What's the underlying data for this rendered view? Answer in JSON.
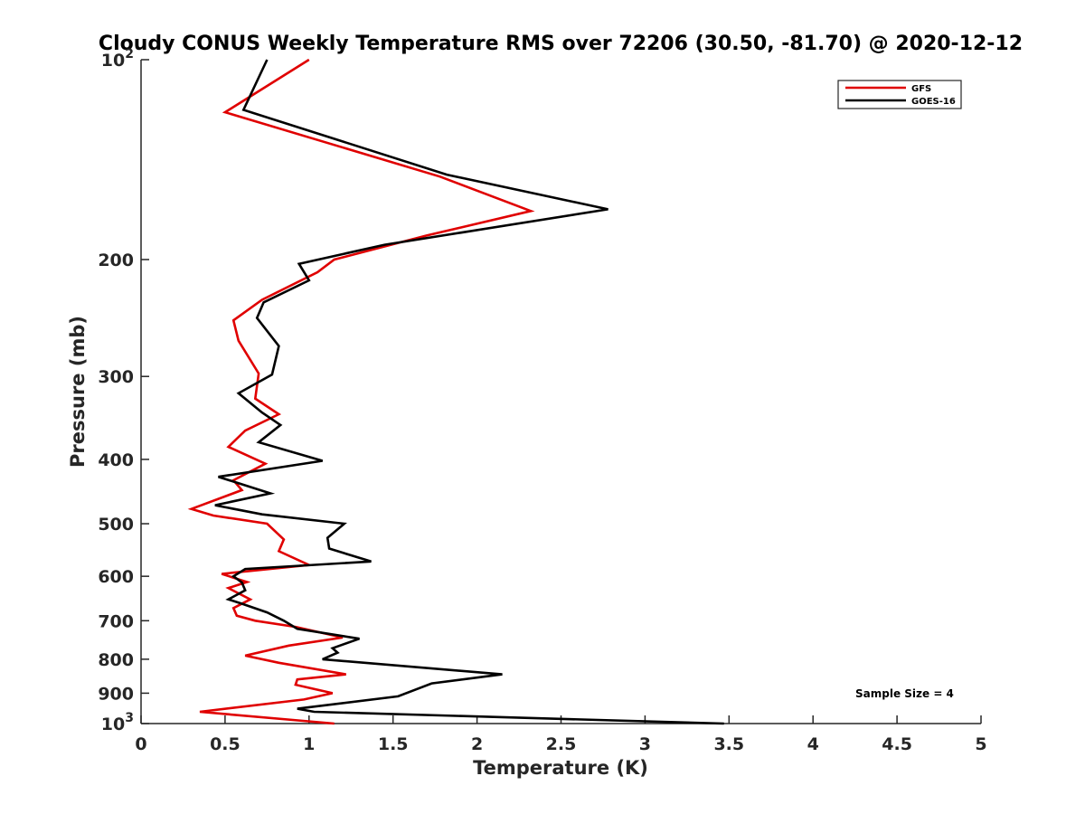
{
  "chart_data": {
    "type": "line",
    "title": "Cloudy CONUS Weekly Temperature RMS over 72206 (30.50, -81.70) @ 2020-12-12",
    "xlabel": "Temperature (K)",
    "ylabel": "Pressure (mb)",
    "xlim": [
      0,
      5
    ],
    "ylim": [
      100,
      1000
    ],
    "y_scale": "log",
    "y_reversed": true,
    "grid": false,
    "legend_position": "top-right",
    "x_ticks": [
      {
        "value": 0,
        "label": "0"
      },
      {
        "value": 0.5,
        "label": "0.5"
      },
      {
        "value": 1,
        "label": "1"
      },
      {
        "value": 1.5,
        "label": "1.5"
      },
      {
        "value": 2,
        "label": "2"
      },
      {
        "value": 2.5,
        "label": "2.5"
      },
      {
        "value": 3,
        "label": "3"
      },
      {
        "value": 3.5,
        "label": "3.5"
      },
      {
        "value": 4,
        "label": "4"
      },
      {
        "value": 4.5,
        "label": "4.5"
      },
      {
        "value": 5,
        "label": "5"
      }
    ],
    "y_ticks": [
      {
        "value": 100,
        "base": "10",
        "exp": "2"
      },
      {
        "value": 200,
        "base": "200",
        "exp": ""
      },
      {
        "value": 300,
        "base": "300",
        "exp": ""
      },
      {
        "value": 400,
        "base": "400",
        "exp": ""
      },
      {
        "value": 500,
        "base": "500",
        "exp": ""
      },
      {
        "value": 600,
        "base": "600",
        "exp": ""
      },
      {
        "value": 700,
        "base": "700",
        "exp": ""
      },
      {
        "value": 800,
        "base": "800",
        "exp": ""
      },
      {
        "value": 900,
        "base": "900",
        "exp": ""
      },
      {
        "value": 1000,
        "base": "10",
        "exp": "3"
      }
    ],
    "annotation": "Sample Size = 4",
    "series": [
      {
        "name": "GFS",
        "color": "#e00000",
        "points": [
          [
            1.0,
            100
          ],
          [
            0.5,
            120
          ],
          [
            1.78,
            150
          ],
          [
            2.32,
            169
          ],
          [
            1.7,
            184
          ],
          [
            1.15,
            200
          ],
          [
            1.05,
            209
          ],
          [
            0.72,
            230
          ],
          [
            0.55,
            247
          ],
          [
            0.58,
            265
          ],
          [
            0.7,
            297
          ],
          [
            0.68,
            324
          ],
          [
            0.82,
            342
          ],
          [
            0.62,
            362
          ],
          [
            0.52,
            383
          ],
          [
            0.74,
            406
          ],
          [
            0.55,
            430
          ],
          [
            0.6,
            445
          ],
          [
            0.3,
            475
          ],
          [
            0.43,
            486
          ],
          [
            0.75,
            500
          ],
          [
            0.85,
            528
          ],
          [
            0.82,
            550
          ],
          [
            1.0,
            577
          ],
          [
            0.48,
            595
          ],
          [
            0.63,
            612
          ],
          [
            0.52,
            625
          ],
          [
            0.65,
            650
          ],
          [
            0.55,
            670
          ],
          [
            0.57,
            688
          ],
          [
            0.68,
            700
          ],
          [
            0.92,
            715
          ],
          [
            1.2,
            742
          ],
          [
            0.88,
            763
          ],
          [
            0.62,
            790
          ],
          [
            0.82,
            810
          ],
          [
            1.22,
            843
          ],
          [
            0.93,
            858
          ],
          [
            0.92,
            874
          ],
          [
            1.14,
            900
          ],
          [
            0.97,
            920
          ],
          [
            0.35,
            960
          ],
          [
            1.15,
            1000
          ]
        ]
      },
      {
        "name": "GOES-16",
        "color": "#000000",
        "points": [
          [
            0.75,
            100
          ],
          [
            0.61,
            119
          ],
          [
            1.82,
            149
          ],
          [
            2.78,
            168
          ],
          [
            1.45,
            190
          ],
          [
            0.94,
            203
          ],
          [
            1.0,
            215
          ],
          [
            0.73,
            232
          ],
          [
            0.69,
            245
          ],
          [
            0.82,
            270
          ],
          [
            0.78,
            298
          ],
          [
            0.58,
            318
          ],
          [
            0.72,
            340
          ],
          [
            0.83,
            355
          ],
          [
            0.7,
            377
          ],
          [
            1.08,
            402
          ],
          [
            0.46,
            425
          ],
          [
            0.77,
            450
          ],
          [
            0.44,
            469
          ],
          [
            0.72,
            484
          ],
          [
            1.21,
            500
          ],
          [
            1.11,
            525
          ],
          [
            1.12,
            545
          ],
          [
            1.37,
            570
          ],
          [
            0.62,
            585
          ],
          [
            0.55,
            600
          ],
          [
            0.6,
            613
          ],
          [
            0.62,
            630
          ],
          [
            0.52,
            650
          ],
          [
            0.6,
            660
          ],
          [
            0.75,
            680
          ],
          [
            0.85,
            700
          ],
          [
            0.93,
            720
          ],
          [
            1.3,
            745
          ],
          [
            1.14,
            770
          ],
          [
            1.17,
            782
          ],
          [
            1.08,
            800
          ],
          [
            2.15,
            843
          ],
          [
            1.73,
            870
          ],
          [
            1.53,
            910
          ],
          [
            0.93,
            950
          ],
          [
            1.03,
            960
          ],
          [
            3.47,
            1000
          ]
        ]
      }
    ]
  }
}
